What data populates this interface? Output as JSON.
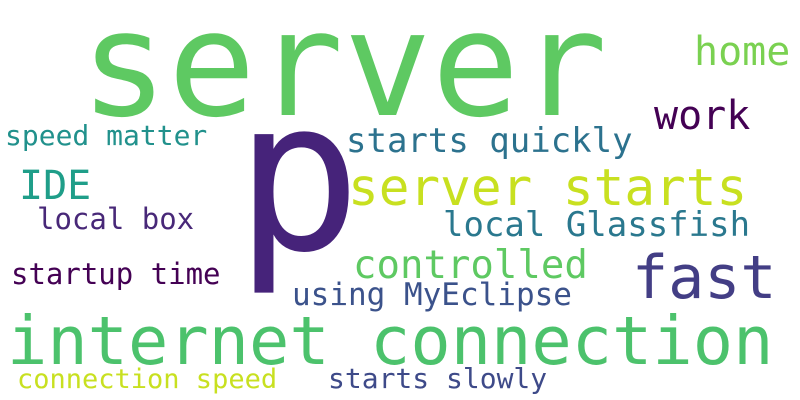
{
  "wordcloud": {
    "words": [
      {
        "key": "server",
        "text": "server",
        "color": "#5ec962"
      },
      {
        "key": "p",
        "text": "p",
        "color": "#46237a"
      },
      {
        "key": "internet_connection",
        "text": "internet connection",
        "color": "#4cc26c"
      },
      {
        "key": "server_starts",
        "text": "server starts",
        "color": "#c8e020"
      },
      {
        "key": "fast",
        "text": "fast",
        "color": "#433e85"
      },
      {
        "key": "home",
        "text": "home",
        "color": "#7ad151"
      },
      {
        "key": "work",
        "text": "work",
        "color": "#440154"
      },
      {
        "key": "starts_quickly",
        "text": "starts quickly",
        "color": "#2c728e"
      },
      {
        "key": "controlled",
        "text": "controlled",
        "color": "#5ec962"
      },
      {
        "key": "local_glassfish",
        "text": "local Glassfish",
        "color": "#2a788e"
      },
      {
        "key": "using_myeclipse",
        "text": "using MyEclipse",
        "color": "#3b528b"
      },
      {
        "key": "ide",
        "text": "IDE",
        "color": "#1f9e89"
      },
      {
        "key": "speed_matter",
        "text": "speed matter",
        "color": "#21918c"
      },
      {
        "key": "local_box",
        "text": "local box",
        "color": "#482878"
      },
      {
        "key": "startup_time",
        "text": "startup time",
        "color": "#440154"
      },
      {
        "key": "connection_speed",
        "text": "connection speed",
        "color": "#c8e020"
      },
      {
        "key": "starts_slowly",
        "text": "starts slowly",
        "color": "#3e4a89"
      }
    ]
  }
}
